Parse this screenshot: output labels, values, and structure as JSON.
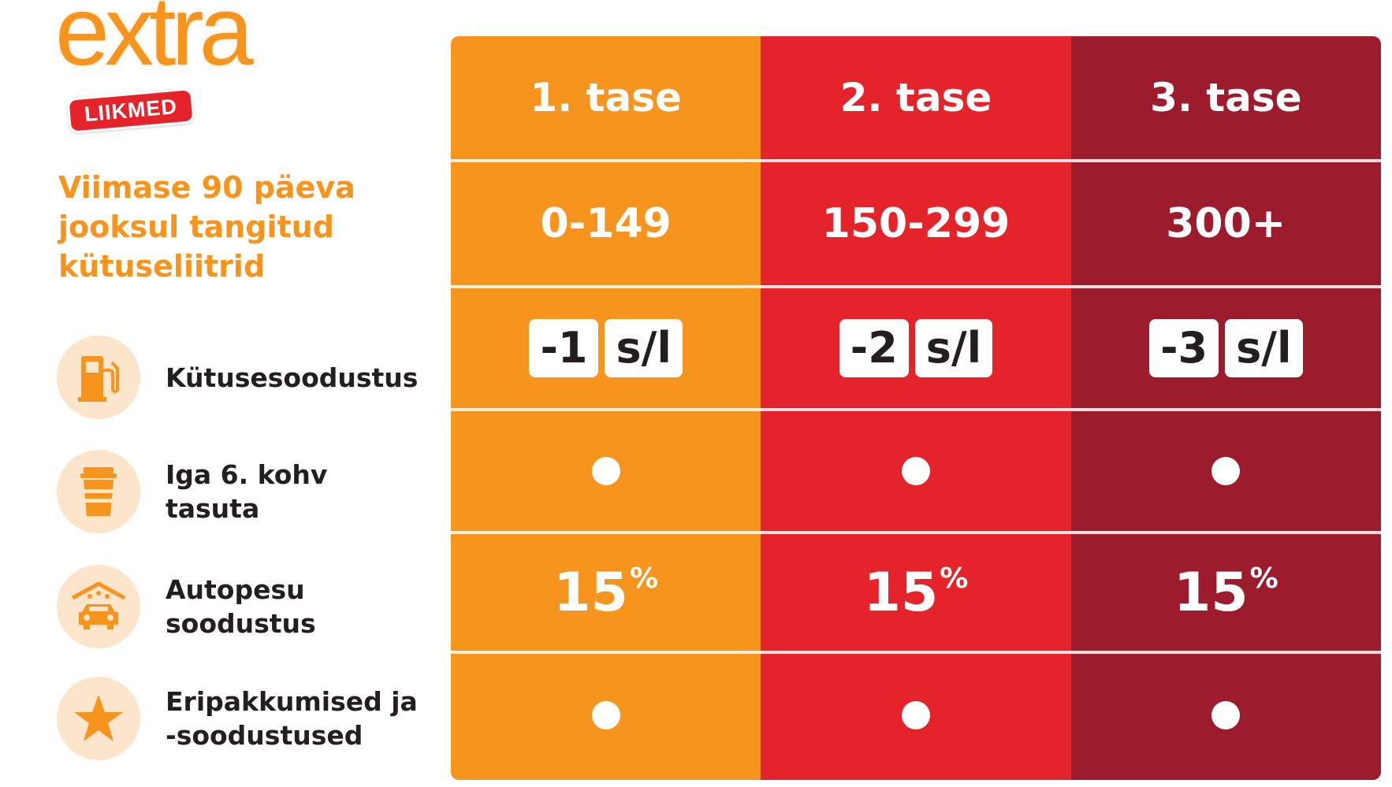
{
  "logo": {
    "word": "extra",
    "badge": "LIIKMED"
  },
  "subtitle": "Viimase 90 päeva jooksul tangitud kütuseliitrid",
  "benefits": [
    {
      "icon": "fuel-pump-icon",
      "label": "Kütusesoodustus"
    },
    {
      "icon": "coffee-cup-icon",
      "label": "Iga 6. kohv tasuta"
    },
    {
      "icon": "car-wash-icon",
      "label": "Autopesu soodustus"
    },
    {
      "icon": "star-icon",
      "label": "Eripakkumised ja -soodustused"
    }
  ],
  "tiers": [
    {
      "name": "1. tase",
      "liters": "0-149",
      "discount_value": "-1",
      "discount_unit": "s/l",
      "wash_value": "15",
      "wash_unit": "%"
    },
    {
      "name": "2. tase",
      "liters": "150-299",
      "discount_value": "-2",
      "discount_unit": "s/l",
      "wash_value": "15",
      "wash_unit": "%"
    },
    {
      "name": "3. tase",
      "liters": "300+",
      "discount_value": "-3",
      "discount_unit": "s/l",
      "wash_value": "15",
      "wash_unit": "%"
    }
  ],
  "colors": {
    "orange": "#f7941d",
    "red": "#e4232a",
    "maroon": "#9c1c2e",
    "icon_bg": "#fde5cc",
    "text_dark": "#231f20"
  }
}
